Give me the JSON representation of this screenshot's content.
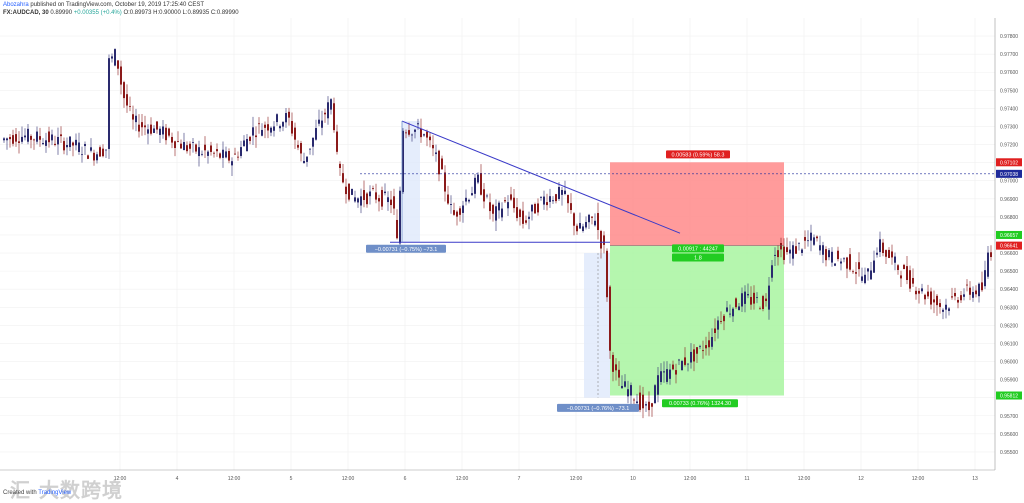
{
  "header": {
    "author": "Abozahra",
    "published": "published on TradingView.com, October 19, 2019 17:25:40 CEST",
    "symbol": "FX:AUDCAD, 30",
    "price": "0.89990",
    "change": "+0.00355 (+0.4%)",
    "ohlc": "O:0.89973 H:0.90000 L:0.89935 C:0.89990"
  },
  "footer": {
    "created_with": "Created with",
    "brand": "TradingView"
  },
  "watermark": "汇 大数跨境",
  "colors": {
    "up": "#2a2a6e",
    "down": "#8b1a1a",
    "stop_zone": "#ff8a8a",
    "target_zone": "#a8f5a0",
    "trendline": "#3a3ac8",
    "measure": "#6f8fc8",
    "label_blue": "#1e2a9a",
    "label_red": "#e02020",
    "label_green": "#22cc22"
  },
  "chart_data": {
    "type": "candlestick",
    "symbol": "FX:AUDCAD",
    "interval": "30",
    "ylim": [
      0.954,
      0.979
    ],
    "x_ticks": [
      "12:00",
      "4",
      "12:00",
      "5",
      "12:00",
      "6",
      "12:00",
      "7",
      "12:00",
      "10",
      "12:00",
      "11",
      "12:00",
      "12",
      "12:00",
      "13"
    ],
    "y_ticks": [
      "0.97800",
      "0.97700",
      "0.97600",
      "0.97500",
      "0.97400",
      "0.97300",
      "0.97200",
      "0.97100",
      "0.97000",
      "0.96900",
      "0.96800",
      "0.96700",
      "0.96600",
      "0.96500",
      "0.96400",
      "0.96300",
      "0.96200",
      "0.96100",
      "0.96000",
      "0.95900",
      "0.95800",
      "0.95700",
      "0.95600",
      "0.95500"
    ],
    "price_path": [
      [
        0,
        0.9722
      ],
      [
        20,
        0.9725
      ],
      [
        50,
        0.9723
      ],
      [
        75,
        0.972
      ],
      [
        95,
        0.9715
      ],
      [
        108,
        0.9718
      ],
      [
        110,
        0.9765
      ],
      [
        118,
        0.977
      ],
      [
        125,
        0.9748
      ],
      [
        135,
        0.9732
      ],
      [
        160,
        0.9728
      ],
      [
        190,
        0.9718
      ],
      [
        235,
        0.9712
      ],
      [
        255,
        0.9728
      ],
      [
        290,
        0.9735
      ],
      [
        305,
        0.971
      ],
      [
        320,
        0.973
      ],
      [
        334,
        0.9745
      ],
      [
        340,
        0.9705
      ],
      [
        355,
        0.969
      ],
      [
        375,
        0.9692
      ],
      [
        395,
        0.9688
      ],
      [
        400,
        0.966
      ],
      [
        404,
        0.973
      ],
      [
        425,
        0.9727
      ],
      [
        440,
        0.971
      ],
      [
        455,
        0.968
      ],
      [
        470,
        0.9692
      ],
      [
        480,
        0.97
      ],
      [
        495,
        0.968
      ],
      [
        510,
        0.969
      ],
      [
        525,
        0.9677
      ],
      [
        545,
        0.969
      ],
      [
        565,
        0.9693
      ],
      [
        580,
        0.9672
      ],
      [
        597,
        0.968
      ],
      [
        602,
        0.9668
      ],
      [
        607,
        0.966
      ],
      [
        612,
        0.9605
      ],
      [
        620,
        0.9588
      ],
      [
        635,
        0.9582
      ],
      [
        650,
        0.9572
      ],
      [
        660,
        0.959
      ],
      [
        680,
        0.9598
      ],
      [
        700,
        0.9605
      ],
      [
        712,
        0.9612
      ],
      [
        722,
        0.9625
      ],
      [
        745,
        0.9635
      ],
      [
        768,
        0.9632
      ],
      [
        775,
        0.9662
      ],
      [
        790,
        0.966
      ],
      [
        815,
        0.9668
      ],
      [
        830,
        0.9658
      ],
      [
        850,
        0.9655
      ],
      [
        868,
        0.9645
      ],
      [
        880,
        0.9665
      ],
      [
        900,
        0.9652
      ],
      [
        920,
        0.964
      ],
      [
        945,
        0.963
      ],
      [
        965,
        0.9638
      ],
      [
        985,
        0.964
      ],
      [
        990,
        0.966
      ],
      [
        1000,
        0.9665
      ]
    ],
    "annotations": [
      {
        "text": "−0.00731 (−0.75%) −73.1",
        "color": "#6f8fc8"
      },
      {
        "text": "−0.00731 (−0.76%) −73.1",
        "color": "#6f8fc8"
      },
      {
        "text": "0.00583 (0.59%) 58.3",
        "color": "#e02020"
      },
      {
        "text": "0.00917 : 44247",
        "color": "#22cc22"
      },
      {
        "text": "1.8",
        "color": "#22cc22"
      },
      {
        "text": "0.00733 (0.76%) 1324.30",
        "color": "#22cc22"
      }
    ],
    "price_labels": [
      {
        "text": "0.97102",
        "color": "#e02020"
      },
      {
        "text": "0.97038",
        "color": "#1e2a9a"
      },
      {
        "text": "0.96641",
        "color": "#e02020"
      },
      {
        "text": "0.96657",
        "color": "#22cc22"
      },
      {
        "text": "0.95812",
        "color": "#22cc22"
      }
    ]
  }
}
